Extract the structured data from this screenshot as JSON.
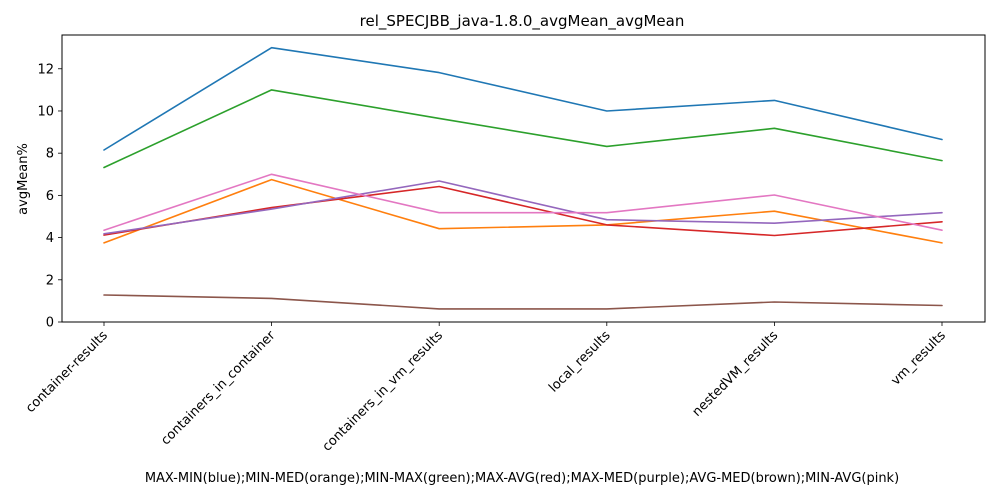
{
  "chart_data": {
    "type": "line",
    "title": "rel_SPECJBB_java-1.8.0_avgMean_avgMean",
    "xlabel": "MAX-MIN(blue);MIN-MED(orange);MIN-MAX(green);MAX-AVG(red);MAX-MED(purple);AVG-MED(brown);MIN-AVG(pink)",
    "ylabel": "avgMean%",
    "categories": [
      "container-results",
      "containers_in_container",
      "containers_in_vm_results",
      "local_results",
      "nestedVM_results",
      "vm_results"
    ],
    "ylim": [
      0,
      13.6
    ],
    "yticks": [
      0,
      2,
      4,
      6,
      8,
      10,
      12
    ],
    "grid": false,
    "legend": "none",
    "series": [
      {
        "color": "#1f77b4",
        "values": [
          8.15,
          13.0,
          11.82,
          10.0,
          10.5,
          8.65
        ]
      },
      {
        "color": "#ff7f0e",
        "values": [
          3.75,
          6.75,
          4.42,
          4.6,
          5.25,
          3.75
        ]
      },
      {
        "color": "#2ca02c",
        "values": [
          7.32,
          11.0,
          9.65,
          8.32,
          9.18,
          7.65
        ]
      },
      {
        "color": "#d62728",
        "values": [
          4.12,
          5.42,
          6.42,
          4.6,
          4.1,
          4.75
        ]
      },
      {
        "color": "#9467bd",
        "values": [
          4.18,
          5.35,
          6.68,
          4.85,
          4.68,
          5.18
        ]
      },
      {
        "color": "#8c564b",
        "values": [
          1.28,
          1.12,
          0.62,
          0.62,
          0.95,
          0.78
        ]
      },
      {
        "color": "#e377c2",
        "values": [
          4.35,
          7.0,
          5.18,
          5.18,
          6.02,
          4.35
        ]
      }
    ]
  }
}
